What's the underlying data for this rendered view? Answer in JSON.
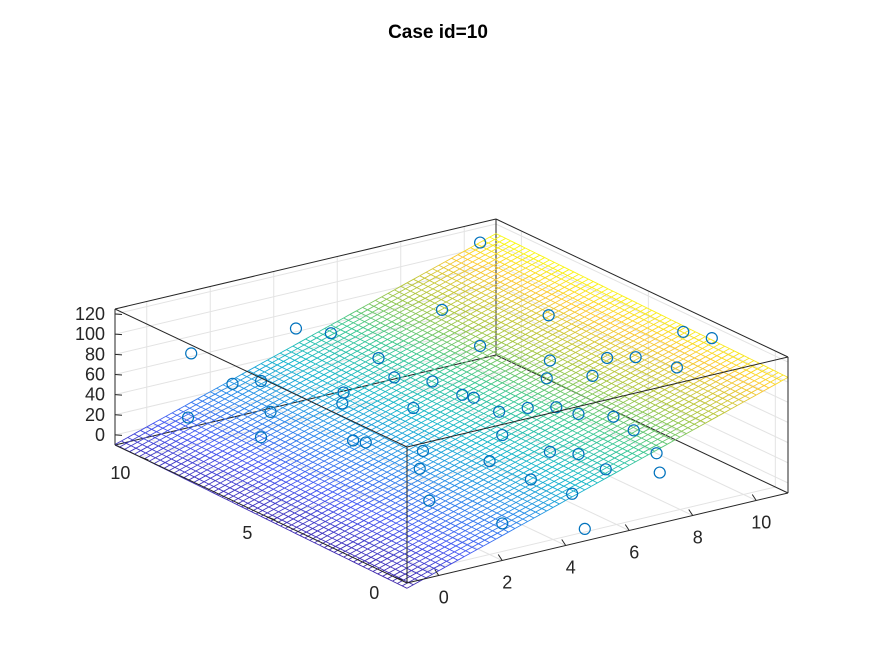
{
  "chart_data": {
    "type": "scatter",
    "title": "Case id=10",
    "xlabel": "",
    "ylabel": "",
    "zlabel": "",
    "xlim": [
      -1,
      11
    ],
    "ylim": [
      -0.5,
      11
    ],
    "zlim": [
      -10,
      125
    ],
    "x_ticks": [
      "0",
      "2",
      "4",
      "6",
      "8",
      "10"
    ],
    "y_ticks": [
      "0",
      "5",
      "10"
    ],
    "z_ticks": [
      "0",
      "20",
      "40",
      "60",
      "80",
      "100",
      "120"
    ],
    "grid": true,
    "box": "full",
    "colormap": "parula",
    "marker_color": "#0072BD",
    "surface": {
      "description": "fitted plane z = c0 + cx*x + cy*y",
      "c0": -5,
      "cx": 10,
      "cy": 0.5,
      "x_range": [
        -1,
        11
      ],
      "y_range": [
        -0.5,
        11
      ],
      "mesh_steps": 60
    },
    "points": [
      {
        "x": 1,
        "y": 10.5,
        "z": 72
      },
      {
        "x": 2,
        "y": 9,
        "z": 55
      },
      {
        "x": 1.5,
        "y": 9.5,
        "z": 50
      },
      {
        "x": 0.5,
        "y": 10,
        "z": 18
      },
      {
        "x": 1.5,
        "y": 8,
        "z": 40
      },
      {
        "x": 0.8,
        "y": 7.5,
        "z": 26
      },
      {
        "x": 3.5,
        "y": 9.5,
        "z": 90
      },
      {
        "x": 3.8,
        "y": 8.5,
        "z": 95
      },
      {
        "x": 3,
        "y": 7,
        "z": 60
      },
      {
        "x": 2.5,
        "y": 6,
        "z": 28
      },
      {
        "x": 2.5,
        "y": 5.5,
        "z": 32
      },
      {
        "x": 4.5,
        "y": 7.5,
        "z": 77
      },
      {
        "x": 4.2,
        "y": 6.5,
        "z": 72
      },
      {
        "x": 4,
        "y": 5.5,
        "z": 55
      },
      {
        "x": 5,
        "y": 6,
        "z": 68
      },
      {
        "x": 5.5,
        "y": 5,
        "z": 60
      },
      {
        "x": 6.5,
        "y": 6,
        "z": 92
      },
      {
        "x": 8.5,
        "y": 5.8,
        "z": 110
      },
      {
        "x": 6,
        "y": 3.5,
        "z": 64
      },
      {
        "x": 5.5,
        "y": 4,
        "z": 58
      },
      {
        "x": 6.5,
        "y": 3,
        "z": 67
      },
      {
        "x": 6.8,
        "y": 2.5,
        "z": 64
      },
      {
        "x": 7,
        "y": 4,
        "z": 80
      },
      {
        "x": 7.5,
        "y": 4.5,
        "z": 88
      },
      {
        "x": 7.8,
        "y": 3.2,
        "z": 86
      },
      {
        "x": 6,
        "y": 1.5,
        "z": 42
      },
      {
        "x": 6.3,
        "y": 0.8,
        "z": 33
      },
      {
        "x": 5.5,
        "y": 2,
        "z": 42
      },
      {
        "x": 7.5,
        "y": 2,
        "z": 62
      },
      {
        "x": 7.5,
        "y": 1.2,
        "z": 58
      },
      {
        "x": 8.5,
        "y": 3.5,
        "z": 95
      },
      {
        "x": 9,
        "y": 3,
        "z": 98
      },
      {
        "x": 9.5,
        "y": 2,
        "z": 96
      },
      {
        "x": 7.5,
        "y": 0.3,
        "z": 46
      },
      {
        "x": 7.2,
        "y": -0.2,
        "z": 35
      },
      {
        "x": 4.5,
        "y": 1.5,
        "z": 28
      },
      {
        "x": 5,
        "y": 0.5,
        "z": 22
      },
      {
        "x": 4,
        "y": 2.5,
        "z": 38
      },
      {
        "x": 4.8,
        "y": 3,
        "z": 52
      },
      {
        "x": 3,
        "y": 4,
        "z": 20
      },
      {
        "x": 3.5,
        "y": 4.5,
        "z": 28
      },
      {
        "x": 2.5,
        "y": 3,
        "z": 4
      },
      {
        "x": 3.2,
        "y": 1,
        "z": 0
      },
      {
        "x": 4.6,
        "y": -0.5,
        "z": 2
      },
      {
        "x": 10.5,
        "y": 3,
        "z": 112
      },
      {
        "x": 11,
        "y": 2.5,
        "z": 108
      },
      {
        "x": 6.5,
        "y": 7.5,
        "z": 110
      },
      {
        "x": 8.5,
        "y": 8.5,
        "z": 150
      },
      {
        "x": 5.3,
        "y": 5.2,
        "z": 62
      },
      {
        "x": 2.8,
        "y": 6.8,
        "z": 53
      }
    ]
  }
}
